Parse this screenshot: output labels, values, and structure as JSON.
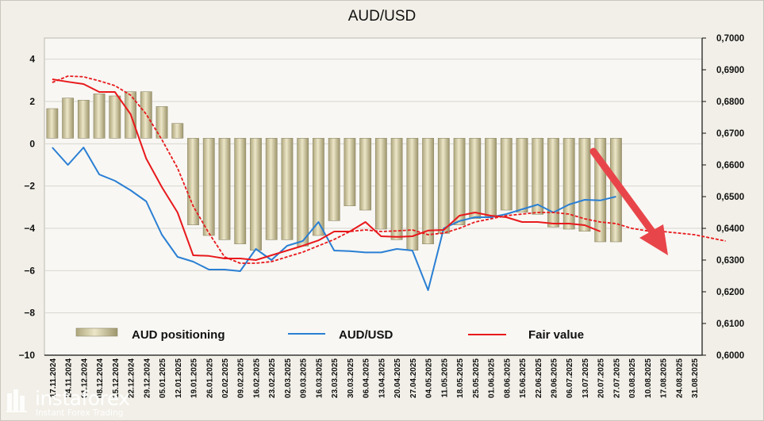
{
  "chart_data": {
    "type": "bar",
    "title": "AUD/USD",
    "xlabel": "",
    "y_left": {
      "range": [
        -10,
        5
      ],
      "ticks": [
        4,
        2,
        0,
        -2,
        -4,
        -6,
        -8,
        -10
      ]
    },
    "y_right": {
      "range": [
        0.6,
        0.7
      ],
      "ticks": [
        "0,7000",
        "0,6900",
        "0,6800",
        "0,6700",
        "0,6600",
        "0,6500",
        "0,6400",
        "0,6300",
        "0,6200",
        "0,6100",
        "0,6000"
      ]
    },
    "x_ticks": [
      "17.11.2024",
      "24.11.2024",
      "01.12.2024",
      "08.12.2024",
      "15.12.2024",
      "22.12.2024",
      "29.12.2024",
      "05.01.2025",
      "12.01.2025",
      "19.01.2025",
      "26.01.2025",
      "02.02.2025",
      "09.02.2025",
      "16.02.2025",
      "23.02.2025",
      "02.03.2025",
      "09.03.2025",
      "16.03.2025",
      "23.03.2025",
      "30.03.2025",
      "06.04.2025",
      "13.04.2025",
      "20.04.2025",
      "27.04.2025",
      "04.05.2025",
      "11.05.2025",
      "18.05.2025",
      "25.05.2025",
      "01.06.2025",
      "08.06.2025",
      "15.06.2025",
      "22.06.2025",
      "29.06.2025",
      "06.07.2025",
      "13.07.2025",
      "20.07.2025",
      "27.07.2025",
      "03.08.2025",
      "10.08.2025",
      "17.08.2025",
      "24.08.2025",
      "31.08.2025"
    ],
    "series": [
      {
        "name": "AUD positioning",
        "type": "bar",
        "color": "#cdc59a",
        "values": [
          1.4,
          1.9,
          1.8,
          2.1,
          2.0,
          2.2,
          2.2,
          1.5,
          0.7,
          -4.1,
          -4.6,
          -4.8,
          -5.0,
          -5.3,
          -4.8,
          -4.8,
          -5.1,
          -4.6,
          -3.9,
          -3.2,
          -3.4,
          -4.3,
          -4.8,
          -5.3,
          -5.0,
          -4.5,
          -4.1,
          -3.8,
          -3.7,
          -3.4,
          -3.5,
          -3.6,
          -4.2,
          -4.3,
          -4.4,
          -4.9,
          -4.9
        ]
      },
      {
        "name": "AUD/USD",
        "type": "line",
        "color": "#2a7fd4",
        "values": [
          0.6655,
          0.66,
          0.6655,
          0.657,
          0.655,
          0.652,
          0.6485,
          0.638,
          0.631,
          0.6295,
          0.627,
          0.627,
          0.6265,
          0.6335,
          0.63,
          0.6345,
          0.636,
          0.642,
          0.633,
          0.6328,
          0.6324,
          0.6324,
          0.6335,
          0.633,
          0.6205,
          0.64,
          0.6423,
          0.6435,
          0.6435,
          0.6445,
          0.646,
          0.6475,
          0.645,
          0.6475,
          0.649,
          0.6488,
          0.65
        ]
      },
      {
        "name": "Fair value",
        "type": "line",
        "color": "#e8191c",
        "values": [
          0.687,
          0.6862,
          0.6855,
          0.683,
          0.683,
          0.676,
          0.662,
          0.653,
          0.645,
          0.6315,
          0.6313,
          0.6305,
          0.6305,
          0.63,
          0.6315,
          0.633,
          0.6345,
          0.6362,
          0.639,
          0.639,
          0.642,
          0.6375,
          0.6373,
          0.6375,
          0.6393,
          0.6395,
          0.644,
          0.645,
          0.644,
          0.6435,
          0.642,
          0.642,
          0.6415,
          0.6415,
          0.641,
          0.639
        ]
      },
      {
        "name": "Fair value",
        "type": "dashed-line",
        "color": "#e8191c",
        "values": [
          0.686,
          0.688,
          0.6878,
          0.6865,
          0.685,
          0.682,
          0.676,
          0.668,
          0.659,
          0.647,
          0.6385,
          0.631,
          0.629,
          0.629,
          0.6295,
          0.631,
          0.6325,
          0.6345,
          0.6365,
          0.639,
          0.6395,
          0.639,
          0.6392,
          0.6395,
          0.638,
          0.6385,
          0.64,
          0.642,
          0.643,
          0.644,
          0.6445,
          0.645,
          0.645,
          0.6445,
          0.643,
          0.642,
          0.6415,
          0.64,
          0.6392,
          0.639,
          0.6385,
          0.638,
          0.637,
          0.636
        ]
      }
    ],
    "legend": [
      "AUD positioning",
      "AUD/USD",
      "Fair value"
    ],
    "annotations": [
      "downward red arrow at right indicating expected decline"
    ],
    "grid": true
  },
  "colors": {
    "background": "#f1efe7",
    "plot_background": "#f8f7f3",
    "bar": "#cdc59a",
    "audusd": "#2a7fd4",
    "fair_value": "#e8191c",
    "arrow": "#e8454a"
  },
  "watermark": {
    "name": "instaforex",
    "tagline": "Instant Forex Trading"
  }
}
